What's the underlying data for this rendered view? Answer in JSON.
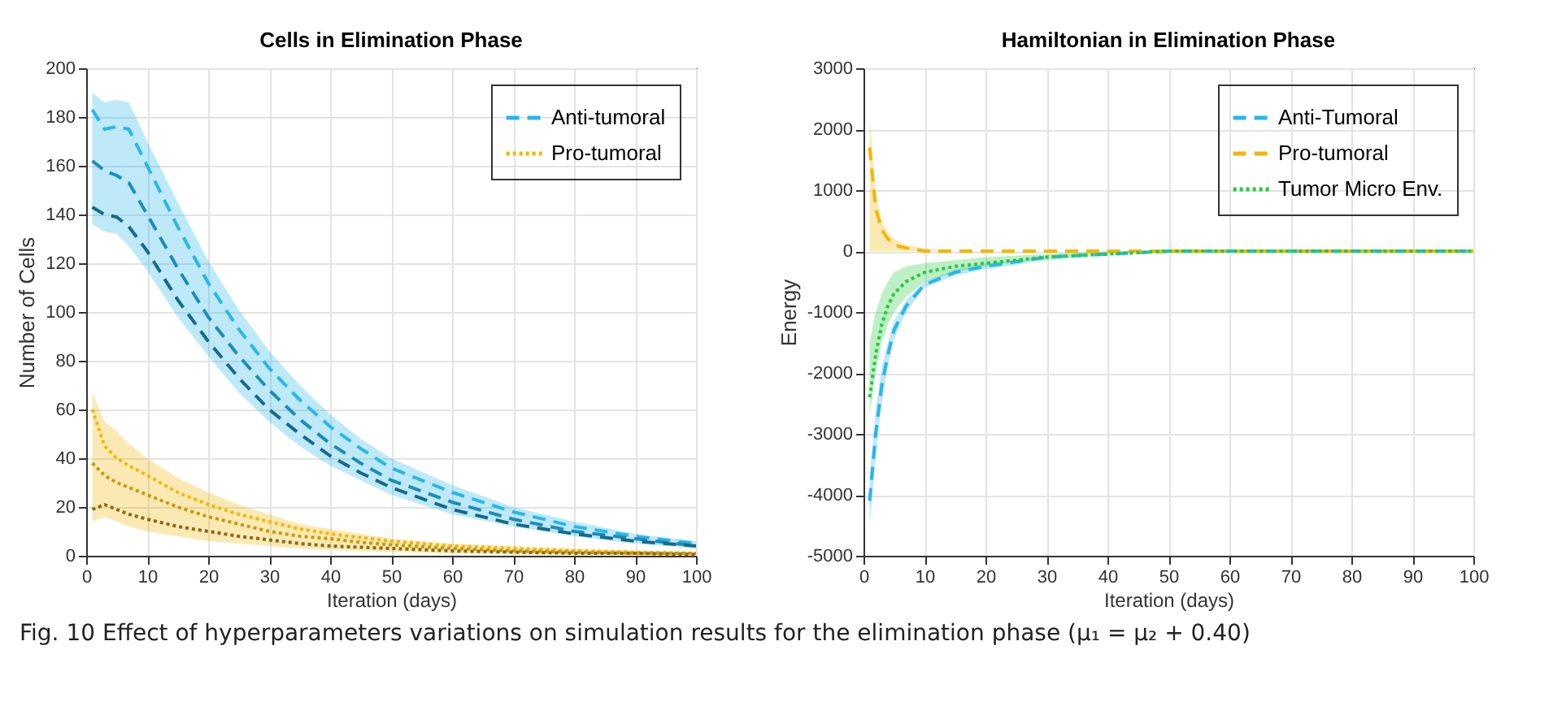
{
  "chart_data": [
    {
      "type": "line",
      "title": "Cells in Elimination Phase",
      "xlabel": "Iteration (days)",
      "ylabel": "Number of Cells",
      "xlim": [
        0,
        100
      ],
      "xticks": [
        0,
        10,
        20,
        30,
        40,
        50,
        60,
        70,
        80,
        90,
        100
      ],
      "ylim": [
        0,
        200
      ],
      "yticks": [
        0,
        20,
        40,
        60,
        80,
        100,
        120,
        140,
        160,
        180,
        200
      ],
      "grid": true,
      "legend": "top right",
      "x": [
        1,
        3,
        5,
        7,
        10,
        15,
        20,
        25,
        30,
        35,
        40,
        45,
        50,
        60,
        70,
        80,
        90,
        100
      ],
      "series": [
        {
          "name": "Anti-tumoral",
          "color": "#29b6e8",
          "line_style": "dashed",
          "values": [
            183,
            175,
            176,
            175,
            160,
            135,
            112,
            93,
            77,
            64,
            53,
            44,
            36,
            26,
            18,
            12,
            8,
            5
          ],
          "lower": [
            136,
            133,
            132,
            127,
            117,
            98,
            82,
            67,
            55,
            45,
            37,
            31,
            25,
            17,
            12,
            8,
            5,
            3
          ],
          "upper": [
            190,
            186,
            187,
            186,
            170,
            145,
            121,
            101,
            84,
            70,
            58,
            48,
            40,
            29,
            20,
            14,
            9,
            6
          ]
        },
        {
          "color": "#1c8cb8",
          "line_style": "dashed",
          "values": [
            162,
            158,
            156,
            153,
            140,
            118,
            98,
            82,
            68,
            56,
            46,
            38,
            31,
            22,
            15,
            10,
            7,
            4
          ]
        },
        {
          "color": "#146a8c",
          "line_style": "dashed",
          "values": [
            143,
            140,
            139,
            135,
            125,
            105,
            88,
            73,
            60,
            50,
            41,
            34,
            28,
            19,
            13,
            9,
            6,
            4
          ]
        },
        {
          "name": "Pro-tumoral",
          "color": "#f2b705",
          "line_style": "dotted",
          "values": [
            60,
            45,
            40,
            37,
            33,
            26,
            21,
            17,
            14,
            11,
            9,
            7.5,
            6,
            4,
            3,
            2,
            1.5,
            1
          ],
          "lower": [
            14,
            16,
            14,
            12,
            10,
            8,
            6,
            5,
            4,
            3,
            2.5,
            2,
            1.5,
            1,
            0.5,
            0.5,
            0.3,
            0.2
          ],
          "upper": [
            67,
            55,
            51,
            46,
            40,
            32,
            26,
            21,
            17,
            13,
            11,
            9,
            7,
            5,
            4,
            3,
            2,
            1.5
          ]
        },
        {
          "color": "#c9980a",
          "line_style": "dotted",
          "values": [
            38,
            33,
            30,
            28,
            25,
            20,
            16,
            13,
            10,
            8,
            7,
            5.5,
            4.5,
            3,
            2,
            1.5,
            1,
            1
          ]
        },
        {
          "color": "#8a6a10",
          "line_style": "dotted",
          "values": [
            19,
            21,
            19,
            17,
            15,
            12,
            10,
            8,
            6.5,
            5,
            4,
            3.5,
            3,
            2,
            1.5,
            1,
            1,
            0.5
          ]
        }
      ],
      "annotations": [
        "Fig. 10  Effect of hyperparameters variations on simulation results for the elimination phase (μ₁ = μ₂ + 0.40)"
      ]
    },
    {
      "type": "line",
      "title": "Hamiltonian in Elimination Phase",
      "xlabel": "Iteration (days)",
      "ylabel": "Energy",
      "xlim": [
        0,
        100
      ],
      "xticks": [
        0,
        10,
        20,
        30,
        40,
        50,
        60,
        70,
        80,
        90,
        100
      ],
      "ylim": [
        -5000,
        3000
      ],
      "yticks": [
        {
          "value": -5000,
          "label": "-5000"
        },
        {
          "value": -4000,
          "label": "-4000"
        },
        {
          "value": -3000,
          "label": "-3000"
        },
        {
          "value": -2000,
          "label": "-2000"
        },
        {
          "value": -1000,
          "label": "-1000"
        },
        0,
        {
          "value": 1000,
          "label": "1000"
        },
        {
          "value": 2000,
          "label": "2000"
        },
        {
          "value": 3000,
          "label": "3000"
        }
      ],
      "grid": true,
      "legend": "top right",
      "x": [
        1,
        2,
        3,
        4,
        5,
        7,
        10,
        15,
        20,
        30,
        40,
        50,
        60,
        80,
        100
      ],
      "series": [
        {
          "name": "Anti-Tumoral",
          "color": "#29b6e8",
          "line_style": "dashed",
          "values": [
            -4100,
            -3000,
            -2200,
            -1700,
            -1300,
            -900,
            -550,
            -350,
            -250,
            -100,
            -50,
            0,
            0,
            0,
            0
          ],
          "lower": [
            -4500,
            -3400,
            -2500,
            -1900,
            -1450,
            -1000,
            -600,
            -400,
            -300,
            -150,
            -50,
            0,
            0,
            0,
            0
          ],
          "upper": [
            -3700,
            -2600,
            -1900,
            -1500,
            -1150,
            -800,
            -500,
            -300,
            -200,
            -100,
            -50,
            0,
            0,
            0,
            0
          ]
        },
        {
          "name": "Pro-tumoral",
          "color": "#f2b705",
          "line_style": "dashed",
          "values": [
            1700,
            700,
            350,
            200,
            100,
            50,
            0,
            0,
            0,
            0,
            0,
            0,
            0,
            0,
            0
          ],
          "lower": [
            0,
            0,
            0,
            0,
            0,
            0,
            0,
            0,
            0,
            0,
            0,
            0,
            0,
            0,
            0
          ],
          "upper": [
            2200,
            1000,
            500,
            300,
            200,
            100,
            50,
            0,
            0,
            0,
            0,
            0,
            0,
            0,
            0
          ]
        },
        {
          "name": "Tumor Micro Env.",
          "color": "#27c93f",
          "line_style": "dotted",
          "values": [
            -2400,
            -1700,
            -1200,
            -900,
            -700,
            -500,
            -350,
            -250,
            -200,
            -100,
            -50,
            0,
            0,
            0,
            0
          ],
          "lower": [
            -2700,
            -2000,
            -1500,
            -1200,
            -1000,
            -750,
            -500,
            -350,
            -250,
            -100,
            -50,
            0,
            0,
            0,
            0
          ],
          "upper": [
            -1500,
            -1000,
            -700,
            -500,
            -350,
            -250,
            -200,
            -150,
            -100,
            -50,
            0,
            0,
            0,
            0,
            0
          ]
        }
      ]
    }
  ]
}
